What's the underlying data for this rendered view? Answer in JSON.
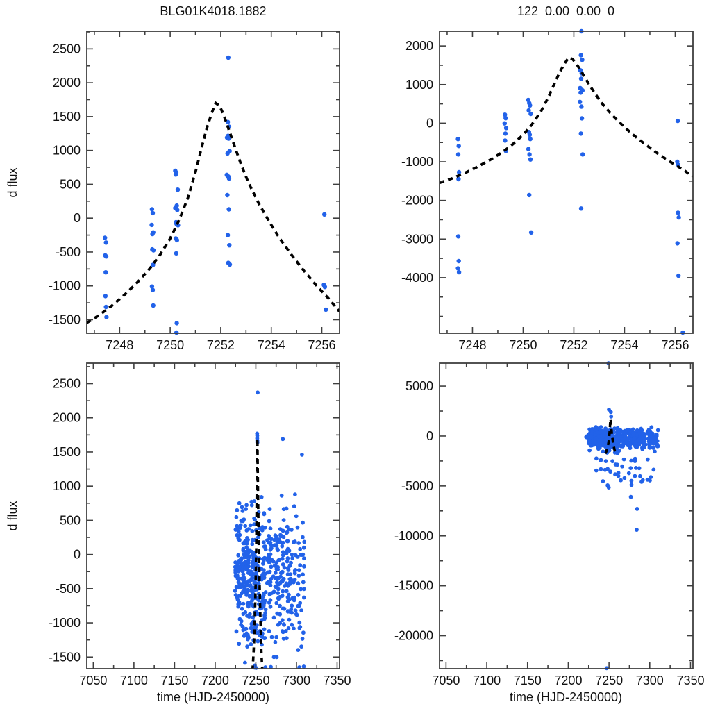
{
  "figure": {
    "background": "#ffffff",
    "colors": {
      "point": "#2262e9",
      "model_curve": "#000000",
      "frame": "#3f3f3f",
      "text": "#111111"
    },
    "seed": 7
  },
  "chart_data": {
    "type": "scatter",
    "title_left": "BLG01K4018.1882",
    "title_right": "122  0.00  0.00  0",
    "ylabel": "d flux",
    "xlabel": "time (HJD-2450000)",
    "model_curve": [
      [
        7241.5,
        -2300
      ],
      [
        7243.2,
        -2090
      ],
      [
        7244.5,
        -1910
      ],
      [
        7245.5,
        -1760
      ],
      [
        7246.2,
        -1640
      ],
      [
        7246.7,
        -1545
      ],
      [
        7247.2,
        -1430
      ],
      [
        7247.7,
        -1290
      ],
      [
        7248.2,
        -1130
      ],
      [
        7248.7,
        -950
      ],
      [
        7249.2,
        -740
      ],
      [
        7249.6,
        -540
      ],
      [
        7250.0,
        -300
      ],
      [
        7250.35,
        -30
      ],
      [
        7250.7,
        300
      ],
      [
        7251.0,
        680
      ],
      [
        7251.25,
        1050
      ],
      [
        7251.45,
        1330
      ],
      [
        7251.65,
        1560
      ],
      [
        7251.8,
        1700
      ],
      [
        7251.95,
        1660
      ],
      [
        7252.1,
        1540
      ],
      [
        7252.3,
        1330
      ],
      [
        7252.55,
        1060
      ],
      [
        7252.8,
        800
      ],
      [
        7253.1,
        520
      ],
      [
        7253.5,
        220
      ],
      [
        7253.9,
        -40
      ],
      [
        7254.3,
        -280
      ],
      [
        7254.8,
        -540
      ],
      [
        7255.3,
        -780
      ],
      [
        7255.8,
        -1000
      ],
      [
        7256.3,
        -1200
      ],
      [
        7256.7,
        -1380
      ],
      [
        7257.4,
        -1560
      ],
      [
        7258.2,
        -1740
      ],
      [
        7259.3,
        -1950
      ],
      [
        7261.0,
        -2200
      ]
    ],
    "panels": [
      {
        "id": "top-left",
        "title": "BLG01K4018.1882",
        "ylabel": "d flux",
        "xlim": [
          7246.7,
          7256.7
        ],
        "ylim": [
          -1700,
          2760
        ],
        "xticks": [
          7248,
          7250,
          7252,
          7254,
          7256
        ],
        "yticks": [
          -1500,
          -1000,
          -500,
          0,
          500,
          1000,
          1500,
          2000,
          2500
        ],
        "xminor": 1,
        "yminor": 250,
        "model_range": [
          7246.7,
          7256.7
        ],
        "points": [
          [
            7247.42,
            -290
          ],
          [
            7247.46,
            -360
          ],
          [
            7247.43,
            -550
          ],
          [
            7247.47,
            -565
          ],
          [
            7247.45,
            -800
          ],
          [
            7247.44,
            -1150
          ],
          [
            7247.46,
            -1310
          ],
          [
            7247.48,
            -1460
          ],
          [
            7249.28,
            130
          ],
          [
            7249.31,
            75
          ],
          [
            7249.27,
            -100
          ],
          [
            7249.33,
            -210
          ],
          [
            7249.3,
            -235
          ],
          [
            7249.29,
            -460
          ],
          [
            7249.34,
            -475
          ],
          [
            7249.32,
            -690
          ],
          [
            7249.28,
            -1010
          ],
          [
            7249.31,
            -1060
          ],
          [
            7249.33,
            -1290
          ],
          [
            7250.2,
            700
          ],
          [
            7250.24,
            675
          ],
          [
            7250.22,
            645
          ],
          [
            7250.3,
            420
          ],
          [
            7250.26,
            185
          ],
          [
            7250.2,
            150
          ],
          [
            7250.28,
            120
          ],
          [
            7250.23,
            -60
          ],
          [
            7250.25,
            -85
          ],
          [
            7250.31,
            -105
          ],
          [
            7250.22,
            -300
          ],
          [
            7250.27,
            -325
          ],
          [
            7250.24,
            -520
          ],
          [
            7250.26,
            -1550
          ],
          [
            7250.25,
            -1690
          ],
          [
            7252.3,
            2370
          ],
          [
            7252.28,
            1420
          ],
          [
            7252.33,
            1350
          ],
          [
            7252.25,
            1190
          ],
          [
            7252.31,
            1175
          ],
          [
            7252.29,
            1215
          ],
          [
            7252.35,
            990
          ],
          [
            7252.27,
            955
          ],
          [
            7252.24,
            640
          ],
          [
            7252.3,
            615
          ],
          [
            7252.33,
            585
          ],
          [
            7252.26,
            340
          ],
          [
            7252.32,
            130
          ],
          [
            7252.28,
            -250
          ],
          [
            7252.34,
            -400
          ],
          [
            7252.3,
            -660
          ],
          [
            7252.36,
            -685
          ],
          [
            7256.1,
            55
          ],
          [
            7256.08,
            -985
          ],
          [
            7256.12,
            -1015
          ],
          [
            7256.16,
            -1350
          ]
        ],
        "clusters": [],
        "outliers": []
      },
      {
        "id": "top-right",
        "title": "122  0.00  0.00  0",
        "xlim": [
          7246.7,
          7256.7
        ],
        "ylim": [
          -5440,
          2380
        ],
        "xticks": [
          7248,
          7250,
          7252,
          7254,
          7256
        ],
        "yticks": [
          -4000,
          -3000,
          -2000,
          -1000,
          0,
          1000,
          2000
        ],
        "xminor": 1,
        "yminor": 500,
        "model_range": [
          7246.7,
          7256.7
        ],
        "points": [
          [
            7247.43,
            -410
          ],
          [
            7247.46,
            -590
          ],
          [
            7247.44,
            -810
          ],
          [
            7247.47,
            -1270
          ],
          [
            7247.45,
            -1450
          ],
          [
            7247.44,
            -2930
          ],
          [
            7247.46,
            -3570
          ],
          [
            7247.43,
            -3760
          ],
          [
            7247.47,
            -3860
          ],
          [
            7249.28,
            220
          ],
          [
            7249.31,
            130
          ],
          [
            7249.27,
            -5
          ],
          [
            7249.33,
            -125
          ],
          [
            7249.3,
            -270
          ],
          [
            7249.29,
            -450
          ],
          [
            7249.32,
            -720
          ],
          [
            7250.2,
            600
          ],
          [
            7250.24,
            520
          ],
          [
            7250.27,
            460
          ],
          [
            7250.22,
            330
          ],
          [
            7250.3,
            240
          ],
          [
            7250.23,
            -230
          ],
          [
            7250.26,
            -300
          ],
          [
            7250.28,
            -410
          ],
          [
            7250.21,
            -670
          ],
          [
            7250.25,
            -810
          ],
          [
            7250.29,
            -940
          ],
          [
            7250.24,
            -1860
          ],
          [
            7250.32,
            -2830
          ],
          [
            7252.3,
            2380
          ],
          [
            7252.28,
            1760
          ],
          [
            7252.33,
            1640
          ],
          [
            7252.26,
            1370
          ],
          [
            7252.31,
            1290
          ],
          [
            7252.29,
            1150
          ],
          [
            7252.25,
            910
          ],
          [
            7252.34,
            850
          ],
          [
            7252.27,
            790
          ],
          [
            7252.24,
            550
          ],
          [
            7252.3,
            430
          ],
          [
            7252.32,
            125
          ],
          [
            7252.28,
            -270
          ],
          [
            7252.35,
            -810
          ],
          [
            7252.29,
            -2210
          ],
          [
            7256.1,
            60
          ],
          [
            7256.08,
            -1000
          ],
          [
            7256.12,
            -1080
          ],
          [
            7256.11,
            -2320
          ],
          [
            7256.14,
            -2440
          ],
          [
            7256.09,
            -3110
          ],
          [
            7256.13,
            -3950
          ],
          [
            7256.3,
            -5420
          ]
        ],
        "clusters": [],
        "outliers": []
      },
      {
        "id": "bottom-left",
        "ylabel": "d flux",
        "xlabel": "time (HJD-2450000)",
        "xlim": [
          7042,
          7353
        ],
        "ylim": [
          -1670,
          2800
        ],
        "xticks": [
          7050,
          7100,
          7150,
          7200,
          7250,
          7300,
          7350
        ],
        "yticks": [
          -1500,
          -1000,
          -500,
          0,
          500,
          1000,
          1500,
          2000,
          2500
        ],
        "xminor": 25,
        "yminor": 250,
        "model_range": [
          7242.5,
          7259.5
        ],
        "points": [],
        "clusters": [
          {
            "t": [
              7224.5,
              7232.5
            ],
            "n": 60,
            "y_mean": -250,
            "y_sd": 430,
            "y_range": [
              -1500,
              750
            ]
          },
          {
            "t": [
              7225.0,
              7241.0
            ],
            "n": 40,
            "y_mean": -180,
            "y_sd": 35,
            "y_range": [
              -320,
              -60
            ]
          },
          {
            "t": [
              7233.0,
              7243.5
            ],
            "n": 95,
            "y_mean": -300,
            "y_sd": 480,
            "y_range": [
              -1620,
              800
            ]
          },
          {
            "t": [
              7244.0,
              7255.5
            ],
            "n": 110,
            "y_mean": -350,
            "y_sd": 520,
            "y_range": [
              -1650,
              900
            ]
          },
          {
            "t": [
              7256.5,
              7262.5
            ],
            "n": 48,
            "y_mean": -350,
            "y_sd": 500,
            "y_range": [
              -1600,
              850
            ]
          },
          {
            "t": [
              7264.0,
              7270.5
            ],
            "n": 42,
            "y_mean": -250,
            "y_sd": 450,
            "y_range": [
              -1350,
              800
            ]
          },
          {
            "t": [
              7271.5,
              7278.5
            ],
            "n": 46,
            "y_mean": -300,
            "y_sd": 500,
            "y_range": [
              -1500,
              900
            ]
          },
          {
            "t": [
              7279.5,
              7285.5
            ],
            "n": 40,
            "y_mean": -250,
            "y_sd": 480,
            "y_range": [
              -1400,
              900
            ]
          },
          {
            "t": [
              7287.0,
              7295.0
            ],
            "n": 46,
            "y_mean": -350,
            "y_sd": 520,
            "y_range": [
              -1550,
              950
            ]
          },
          {
            "t": [
              7296.5,
              7310.0
            ],
            "n": 52,
            "y_mean": -300,
            "y_sd": 500,
            "y_range": [
              -1550,
              950
            ]
          }
        ],
        "outliers": [
          [
            7252.3,
            2370
          ],
          [
            7251.62,
            1770
          ],
          [
            7251.75,
            1740
          ],
          [
            7251.7,
            1700
          ],
          [
            7251.85,
            1665
          ],
          [
            7251.9,
            1640
          ],
          [
            7283.2,
            1690
          ],
          [
            7306.8,
            1460
          ],
          [
            7248.3,
            -1655
          ],
          [
            7250.4,
            -1660
          ],
          [
            7261.8,
            -1650
          ],
          [
            7268.5,
            -1645
          ],
          [
            7303.5,
            -1650
          ],
          [
            7309.0,
            -1640
          ]
        ]
      },
      {
        "id": "bottom-right",
        "xlabel": "time (HJD-2450000)",
        "xlim": [
          7042,
          7353
        ],
        "ylim": [
          -23300,
          7300
        ],
        "xticks": [
          7050,
          7100,
          7150,
          7200,
          7250,
          7300,
          7350
        ],
        "yticks": [
          -20000,
          -15000,
          -10000,
          -5000,
          0,
          5000
        ],
        "xminor": 25,
        "yminor": 2500,
        "model_range": [
          7244.6,
          7257.9
        ],
        "points": [],
        "clusters": [
          {
            "t": [
              7224.5,
              7232.5
            ],
            "n": 55,
            "y_mean": -150,
            "y_sd": 450,
            "y_range": [
              -1600,
              700
            ]
          },
          {
            "t": [
              7222.0,
              7247.0
            ],
            "n": 45,
            "y_mean": -120,
            "y_sd": 55,
            "y_range": [
              -350,
              80
            ]
          },
          {
            "t": [
              7233.0,
              7243.5
            ],
            "n": 90,
            "y_mean": -200,
            "y_sd": 520,
            "y_range": [
              -1900,
              900
            ],
            "tail": {
              "n": 6,
              "y_range": [
                -4600,
                -2200
              ]
            }
          },
          {
            "t": [
              7244.0,
              7255.5
            ],
            "n": 105,
            "y_mean": -250,
            "y_sd": 560,
            "y_range": [
              -2000,
              1100
            ],
            "tail": {
              "n": 7,
              "y_range": [
                -5200,
                -2200
              ]
            }
          },
          {
            "t": [
              7256.5,
              7262.5
            ],
            "n": 45,
            "y_mean": -300,
            "y_sd": 550,
            "y_range": [
              -1900,
              800
            ],
            "tail": {
              "n": 5,
              "y_range": [
                -5000,
                -2100
              ]
            }
          },
          {
            "t": [
              7264.0,
              7270.5
            ],
            "n": 40,
            "y_mean": -250,
            "y_sd": 500,
            "y_range": [
              -1800,
              800
            ],
            "tail": {
              "n": 4,
              "y_range": [
                -4600,
                -2000
              ]
            }
          },
          {
            "t": [
              7271.5,
              7278.5
            ],
            "n": 44,
            "y_mean": -300,
            "y_sd": 550,
            "y_range": [
              -1900,
              900
            ],
            "tail": {
              "n": 5,
              "y_range": [
                -5000,
                -2100
              ]
            }
          },
          {
            "t": [
              7279.5,
              7285.5
            ],
            "n": 38,
            "y_mean": -250,
            "y_sd": 500,
            "y_range": [
              -1800,
              900
            ],
            "tail": {
              "n": 4,
              "y_range": [
                -4400,
                -2000
              ]
            }
          },
          {
            "t": [
              7287.0,
              7295.0
            ],
            "n": 44,
            "y_mean": -300,
            "y_sd": 550,
            "y_range": [
              -1900,
              950
            ],
            "tail": {
              "n": 4,
              "y_range": [
                -4800,
                -2200
              ]
            }
          },
          {
            "t": [
              7296.5,
              7310.0
            ],
            "n": 50,
            "y_mean": -300,
            "y_sd": 550,
            "y_range": [
              -1900,
              950
            ],
            "tail": {
              "n": 5,
              "y_range": [
                -5000,
                -2200
              ]
            }
          }
        ],
        "outliers": [
          [
            7249.3,
            7300
          ],
          [
            7249.9,
            2650
          ],
          [
            7252.6,
            1950
          ],
          [
            7252.3,
            2400
          ],
          [
            7284.5,
            -7300
          ],
          [
            7284.0,
            -9400
          ],
          [
            7276.8,
            -6100
          ],
          [
            7247.1,
            -23250
          ]
        ]
      }
    ]
  }
}
